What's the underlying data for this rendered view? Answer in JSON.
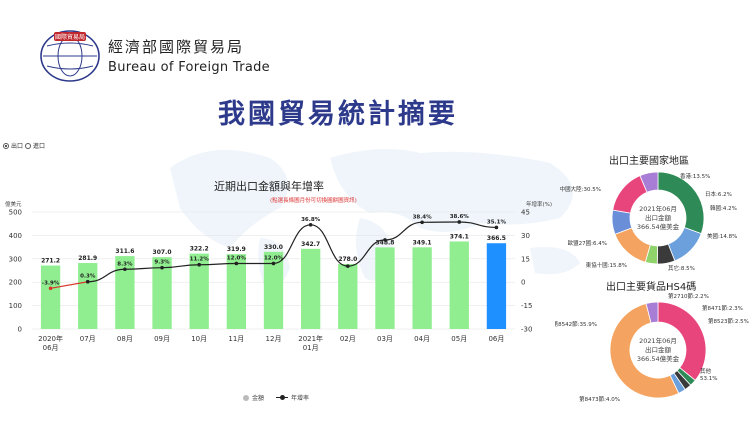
{
  "header": {
    "org_name_zh": "經濟部國際貿易局",
    "org_name_en": "Bureau of Foreign Trade",
    "logo_text": "國際貿易局",
    "page_title": "我國貿易統計摘要"
  },
  "toggle": {
    "export_label": "出口",
    "import_label": "進口",
    "selected": "出口"
  },
  "chart_data": [
    {
      "type": "bar",
      "title": "近期出口金額與年增率",
      "note": "(點選長條圖月份可切換圓餅圖資訊)",
      "y_left_unit": "億美元",
      "y_right_unit": "年增率(%)",
      "ylim": [
        0,
        500
      ],
      "y_ticks": [
        0,
        100,
        200,
        300,
        400,
        500
      ],
      "y2lim": [
        -30,
        45
      ],
      "y2_ticks": [
        -30,
        -15,
        0,
        15,
        30,
        45
      ],
      "categories": [
        "2020年\n06月",
        "07月",
        "08月",
        "09月",
        "10月",
        "11月",
        "12月",
        "2021年\n01月",
        "02月",
        "03月",
        "04月",
        "05月",
        "06月"
      ],
      "series": [
        {
          "name": "金額",
          "values": [
            271.2,
            281.9,
            311.6,
            307.0,
            322.2,
            319.9,
            330.0,
            342.7,
            278.0,
            348.8,
            349.1,
            374.1,
            366.5
          ]
        },
        {
          "name": "年增率",
          "values": [
            -3.9,
            0.3,
            8.3,
            9.3,
            11.2,
            12.0,
            12.0,
            36.8,
            10.3,
            27.1,
            38.4,
            38.6,
            35.1
          ]
        }
      ],
      "line_labels": [
        "-3.9%",
        "0.3%",
        "8.3%",
        "9.3%",
        "11.2%",
        "12.0%",
        "12.0%",
        "36.8%",
        "",
        "",
        "38.4%",
        "38.6%",
        "35.1%"
      ],
      "selected_index": 12,
      "legend": [
        "金額",
        "年增率"
      ],
      "colors": {
        "bar": "#90ee90",
        "bar_selected": "#1e90ff",
        "line": "#222222",
        "first_segment": "#d9352b"
      }
    },
    {
      "type": "pie",
      "title": "出口主要國家地區",
      "center_lines": [
        "2021年06月",
        "出口金額",
        "366.54億美金"
      ],
      "slices": [
        {
          "label": "中國大陸:30.5%",
          "value": 30.5,
          "color": "#2e8b57"
        },
        {
          "label": "香港:13.5%",
          "value": 13.5,
          "color": "#6ca0dc"
        },
        {
          "label": "日本:6.2%",
          "value": 6.2,
          "color": "#3a3a3a"
        },
        {
          "label": "韓國:4.2%",
          "value": 4.2,
          "color": "#90d36a"
        },
        {
          "label": "美國:14.8%",
          "value": 14.8,
          "color": "#f4a460"
        },
        {
          "label": "其它:8.5%",
          "value": 8.5,
          "color": "#6a8fd8"
        },
        {
          "label": "東協十國:15.8%",
          "value": 15.8,
          "color": "#e8457d"
        },
        {
          "label": "歐盟27國:6.4%",
          "value": 6.4,
          "color": "#a77dd6"
        }
      ]
    },
    {
      "type": "pie",
      "title": "出口主要貨品HS4碼",
      "center_lines": [
        "2021年06月",
        "出口金額",
        "366.54億美金"
      ],
      "slices": [
        {
          "label": "第8542節:35.9%",
          "value": 35.9,
          "color": "#e8457d"
        },
        {
          "label": "第2710節:2.2%",
          "value": 2.2,
          "color": "#2e8b57"
        },
        {
          "label": "第8471節:2.3%",
          "value": 2.3,
          "color": "#3a3a3a"
        },
        {
          "label": "第8523節:2.5%",
          "value": 2.5,
          "color": "#6ca0dc"
        },
        {
          "label": "其他\n53.1%",
          "value": 53.1,
          "color": "#f4a460"
        },
        {
          "label": "第8473節:4.0%",
          "value": 4.0,
          "color": "#a77dd6"
        }
      ]
    }
  ]
}
